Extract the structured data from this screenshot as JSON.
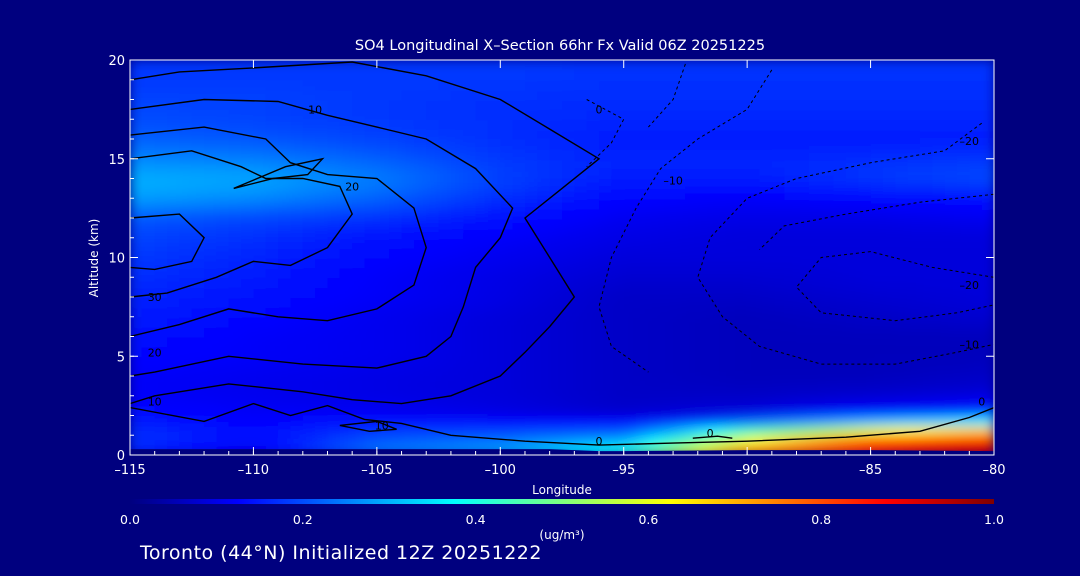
{
  "title": "SO4 Longitudinal X–Section 66hr  Fx Valid 06Z 20251225",
  "footer": "Toronto (44°N) Initialized 12Z 20251222",
  "chart_data": {
    "type": "heatmap",
    "title": "SO4 Longitudinal X–Section 66hr  Fx Valid 06Z 20251225",
    "xlabel": "Longitude",
    "ylabel": "Altitude (km)",
    "xlim": [
      -115,
      -80
    ],
    "ylim": [
      0,
      20
    ],
    "x_ticks": [
      -115,
      -110,
      -105,
      -100,
      -95,
      -90,
      -85,
      -80
    ],
    "x_tick_labels": [
      "–115",
      "–110",
      "–105",
      "–100",
      "–95",
      "–90",
      "–85",
      "–80"
    ],
    "y_ticks": [
      0,
      5,
      10,
      15,
      20
    ],
    "y_tick_labels": [
      "0",
      "5",
      "10",
      "15",
      "20"
    ],
    "colorbar": {
      "label": "(ug/m³)",
      "min": 0.0,
      "max": 1.0,
      "ticks": [
        0.0,
        0.2,
        0.4,
        0.6,
        0.8,
        1.0
      ],
      "tick_labels": [
        "0.0",
        "0.2",
        "0.4",
        "0.6",
        "0.8",
        "1.0"
      ],
      "colors": [
        "#00007f",
        "#0000ff",
        "#007fff",
        "#00ffff",
        "#7fff7f",
        "#ffff00",
        "#ff7f00",
        "#ff0000",
        "#7f0000"
      ]
    },
    "so4_field": {
      "altitude_levels": [
        0,
        1,
        2,
        3,
        4,
        5,
        6,
        7,
        8,
        9,
        10,
        11,
        12,
        13,
        14,
        15,
        16,
        17,
        18,
        19,
        20
      ],
      "longitude_samples": [
        -115,
        -110,
        -105,
        -100,
        -95,
        -90,
        -85,
        -80
      ],
      "values": [
        [
          0.15,
          0.1,
          0.25,
          0.3,
          0.45,
          0.8,
          0.92,
          0.97
        ],
        [
          0.18,
          0.14,
          0.2,
          0.22,
          0.25,
          0.55,
          0.75,
          0.85
        ],
        [
          0.14,
          0.12,
          0.12,
          0.1,
          0.08,
          0.1,
          0.15,
          0.2
        ],
        [
          0.12,
          0.11,
          0.1,
          0.09,
          0.07,
          0.07,
          0.08,
          0.09
        ],
        [
          0.12,
          0.11,
          0.1,
          0.09,
          0.07,
          0.06,
          0.06,
          0.07
        ],
        [
          0.13,
          0.12,
          0.11,
          0.09,
          0.07,
          0.06,
          0.06,
          0.06
        ],
        [
          0.14,
          0.12,
          0.11,
          0.09,
          0.07,
          0.06,
          0.06,
          0.06
        ],
        [
          0.15,
          0.13,
          0.11,
          0.09,
          0.07,
          0.06,
          0.07,
          0.08
        ],
        [
          0.16,
          0.14,
          0.12,
          0.1,
          0.07,
          0.07,
          0.08,
          0.09
        ],
        [
          0.17,
          0.15,
          0.12,
          0.1,
          0.08,
          0.08,
          0.09,
          0.09
        ],
        [
          0.18,
          0.16,
          0.13,
          0.11,
          0.09,
          0.09,
          0.09,
          0.09
        ],
        [
          0.19,
          0.17,
          0.14,
          0.12,
          0.1,
          0.09,
          0.09,
          0.09
        ],
        [
          0.21,
          0.19,
          0.17,
          0.14,
          0.11,
          0.1,
          0.1,
          0.11
        ],
        [
          0.28,
          0.26,
          0.22,
          0.17,
          0.13,
          0.12,
          0.13,
          0.14
        ],
        [
          0.3,
          0.29,
          0.25,
          0.19,
          0.15,
          0.15,
          0.18,
          0.2
        ],
        [
          0.26,
          0.25,
          0.22,
          0.18,
          0.16,
          0.16,
          0.17,
          0.18
        ],
        [
          0.22,
          0.21,
          0.19,
          0.17,
          0.15,
          0.15,
          0.15,
          0.15
        ],
        [
          0.2,
          0.19,
          0.18,
          0.17,
          0.16,
          0.16,
          0.16,
          0.16
        ],
        [
          0.19,
          0.19,
          0.18,
          0.17,
          0.17,
          0.17,
          0.17,
          0.17
        ],
        [
          0.18,
          0.18,
          0.18,
          0.18,
          0.17,
          0.17,
          0.17,
          0.17
        ],
        [
          0.18,
          0.18,
          0.18,
          0.18,
          0.18,
          0.18,
          0.18,
          0.18
        ]
      ]
    },
    "terrain_km": {
      "longitude": [
        -115,
        -114,
        -113,
        -112,
        -111,
        -110,
        -109,
        -108,
        -107,
        -106,
        -105,
        -104,
        -103,
        -102,
        -101,
        -100,
        -99,
        -98,
        -97,
        -96,
        -95,
        -90,
        -85,
        -80
      ],
      "altitude": [
        2.2,
        2.2,
        2.1,
        1.6,
        1.8,
        2.5,
        2.1,
        1.6,
        2.3,
        1.9,
        1.4,
        1.3,
        1.2,
        1.0,
        0.8,
        0.6,
        0.4,
        0.3,
        0.25,
        0.2,
        0.2,
        0.25,
        0.25,
        0.2
      ]
    },
    "contours": {
      "solid_labels": [
        "10",
        "20",
        "30",
        "0"
      ],
      "dashed_labels": [
        "–10",
        "–20"
      ],
      "annotations": [
        {
          "text": "10",
          "x": -107.5,
          "y": 17.3
        },
        {
          "text": "0",
          "x": -96.0,
          "y": 17.3
        },
        {
          "text": "20",
          "x": -106.0,
          "y": 13.4
        },
        {
          "text": "–10",
          "x": -93.0,
          "y": 13.7
        },
        {
          "text": "–20",
          "x": -81.0,
          "y": 15.7
        },
        {
          "text": "30",
          "x": -114.0,
          "y": 7.8
        },
        {
          "text": "20",
          "x": -114.0,
          "y": 5.0
        },
        {
          "text": "10",
          "x": -114.0,
          "y": 2.5
        },
        {
          "text": "–20",
          "x": -81.0,
          "y": 8.4
        },
        {
          "text": "–10",
          "x": -81.0,
          "y": 5.4
        },
        {
          "text": "0",
          "x": -80.5,
          "y": 2.5
        },
        {
          "text": "10",
          "x": -104.8,
          "y": 1.3
        },
        {
          "text": "0",
          "x": -96.0,
          "y": 0.5
        },
        {
          "text": "0",
          "x": -91.5,
          "y": 0.9
        }
      ]
    }
  }
}
